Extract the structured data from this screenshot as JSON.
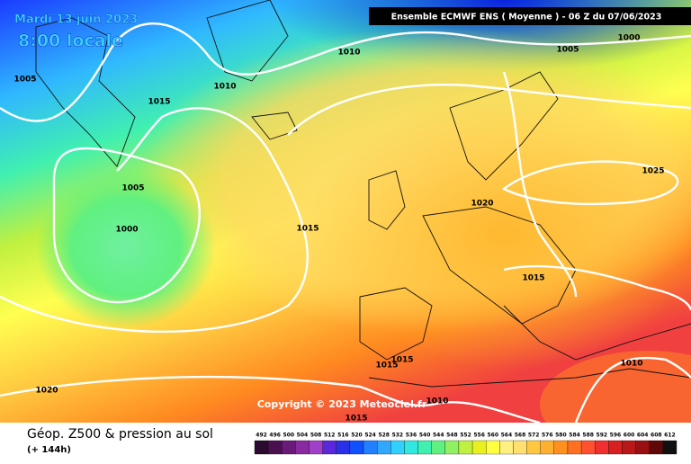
{
  "header": {
    "date": "Mardi 13 juin 2023",
    "time": "8:00 locale",
    "model": "Ensemble ECMWF ENS  ( Moyenne )  -  06 Z du 07/06/2023"
  },
  "isobar_labels": [
    1005,
    1010,
    1010,
    1015,
    1005,
    1000,
    1015,
    1020,
    1025,
    1015,
    1015,
    1015,
    1010,
    1020,
    1010,
    1015,
    1005,
    1000
  ],
  "copyright": "Copyright © 2023 Meteociel.fr",
  "footer": {
    "title": "Géop. Z500 & pression au sol",
    "subtitle": "(+ 144h)"
  },
  "colorbar": {
    "ticks": [
      492,
      496,
      500,
      504,
      508,
      512,
      516,
      520,
      524,
      528,
      532,
      536,
      540,
      544,
      548,
      552,
      556,
      560,
      564,
      568,
      572,
      576,
      580,
      584,
      588,
      592,
      596,
      600,
      604,
      608,
      612
    ],
    "colors": [
      "#2a0a2e",
      "#4a1050",
      "#6a1a78",
      "#8a2aa0",
      "#a040c8",
      "#5a28d8",
      "#2a30e8",
      "#1050ff",
      "#2080ff",
      "#30a8ff",
      "#30d0ff",
      "#30e8e0",
      "#40f0b0",
      "#60f080",
      "#90f060",
      "#c0f040",
      "#e8f020",
      "#ffff40",
      "#fff080",
      "#ffe070",
      "#ffc840",
      "#ffb030",
      "#ff9020",
      "#ff7020",
      "#ff5030",
      "#f03030",
      "#d82020",
      "#b81818",
      "#981010",
      "#600808",
      "#101010"
    ]
  }
}
